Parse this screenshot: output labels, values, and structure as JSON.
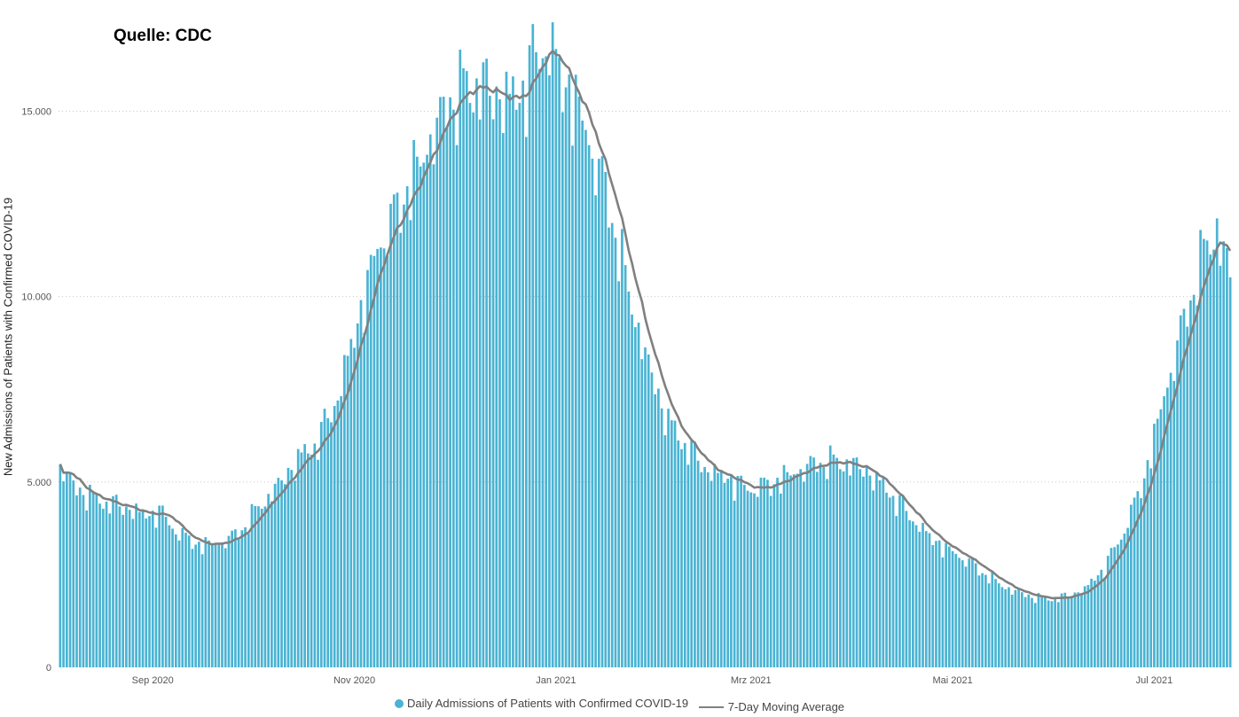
{
  "source_label": "Quelle: CDC",
  "chart_data": {
    "type": "bar",
    "ylabel": "New Admissions of Patients with Confirmed COVID-19",
    "ylim": [
      0,
      18000
    ],
    "y_ticks": [
      0,
      5000,
      10000,
      15000
    ],
    "y_tick_labels": [
      "0",
      "5.000",
      "10.000",
      "15.000"
    ],
    "grid": "horizontal-dotted",
    "x_ticks": [
      {
        "day": 28,
        "label": "Sep 2020"
      },
      {
        "day": 89,
        "label": "Nov 2020"
      },
      {
        "day": 150,
        "label": "Jan 2021"
      },
      {
        "day": 209,
        "label": "Mrz 2021"
      },
      {
        "day": 270,
        "label": "Mai 2021"
      },
      {
        "day": 331,
        "label": "Jul 2021"
      }
    ],
    "start_date": "2020-08-04",
    "bar_color": "#4ab3d3",
    "line_color": "#808080",
    "legend": [
      "Daily Admissions of Patients with Confirmed COVID-19",
      "7-Day Moving Average"
    ],
    "legend_position": "bottom-center",
    "daily_anchors": [
      [
        0,
        5400
      ],
      [
        5,
        4800
      ],
      [
        12,
        4500
      ],
      [
        20,
        4300
      ],
      [
        26,
        4100
      ],
      [
        30,
        4200
      ],
      [
        36,
        3600
      ],
      [
        42,
        3300
      ],
      [
        48,
        3350
      ],
      [
        54,
        3600
      ],
      [
        60,
        4300
      ],
      [
        66,
        4900
      ],
      [
        72,
        5600
      ],
      [
        78,
        6100
      ],
      [
        84,
        7300
      ],
      [
        90,
        9300
      ],
      [
        96,
        11300
      ],
      [
        102,
        12300
      ],
      [
        108,
        13400
      ],
      [
        114,
        14600
      ],
      [
        120,
        15500
      ],
      [
        126,
        15700
      ],
      [
        132,
        15400
      ],
      [
        138,
        15300
      ],
      [
        144,
        16400
      ],
      [
        147,
        16900
      ],
      [
        150,
        16200
      ],
      [
        156,
        15200
      ],
      [
        160,
        14200
      ],
      [
        166,
        12500
      ],
      [
        172,
        10100
      ],
      [
        178,
        8100
      ],
      [
        184,
        6600
      ],
      [
        190,
        5900
      ],
      [
        196,
        5300
      ],
      [
        202,
        5100
      ],
      [
        208,
        4800
      ],
      [
        214,
        4900
      ],
      [
        220,
        5150
      ],
      [
        226,
        5400
      ],
      [
        232,
        5550
      ],
      [
        238,
        5500
      ],
      [
        244,
        5300
      ],
      [
        250,
        4800
      ],
      [
        256,
        4200
      ],
      [
        262,
        3600
      ],
      [
        268,
        3200
      ],
      [
        274,
        2900
      ],
      [
        280,
        2500
      ],
      [
        286,
        2150
      ],
      [
        292,
        1950
      ],
      [
        298,
        1850
      ],
      [
        304,
        1900
      ],
      [
        310,
        2100
      ],
      [
        316,
        2700
      ],
      [
        322,
        3700
      ],
      [
        328,
        5100
      ],
      [
        334,
        7300
      ],
      [
        340,
        9300
      ],
      [
        346,
        11200
      ],
      [
        350,
        11800
      ],
      [
        354,
        10500
      ]
    ]
  }
}
